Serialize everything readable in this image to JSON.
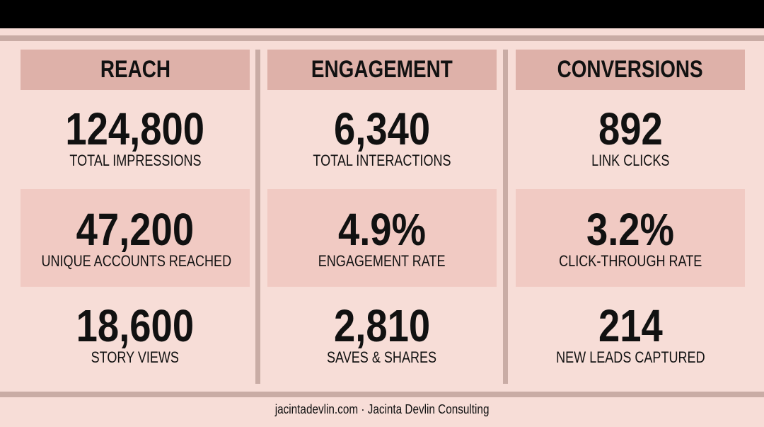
{
  "columns": [
    {
      "header": "REACH",
      "metrics": [
        {
          "value": "124,800",
          "label": "TOTAL IMPRESSIONS"
        },
        {
          "value": "47,200",
          "label": "UNIQUE ACCOUNTS REACHED"
        },
        {
          "value": "18,600",
          "label": "STORY VIEWS"
        }
      ]
    },
    {
      "header": "ENGAGEMENT",
      "metrics": [
        {
          "value": "6,340",
          "label": "TOTAL INTERACTIONS"
        },
        {
          "value": "4.9%",
          "label": "ENGAGEMENT RATE"
        },
        {
          "value": "2,810",
          "label": "SAVES & SHARES"
        }
      ]
    },
    {
      "header": "CONVERSIONS",
      "metrics": [
        {
          "value": "892",
          "label": "LINK CLICKS"
        },
        {
          "value": "3.2%",
          "label": "CLICK-THROUGH RATE"
        },
        {
          "value": "214",
          "label": "NEW LEADS CAPTURED"
        }
      ]
    }
  ],
  "footer": "jacintadevlin.com · Jacinta Devlin Consulting",
  "colors": {
    "background": "#f7ddd7",
    "header_fill": "#deb1a9",
    "shaded_fill": "#f1cac3",
    "rule": "#c9aca5",
    "top_bar": "#000000"
  }
}
